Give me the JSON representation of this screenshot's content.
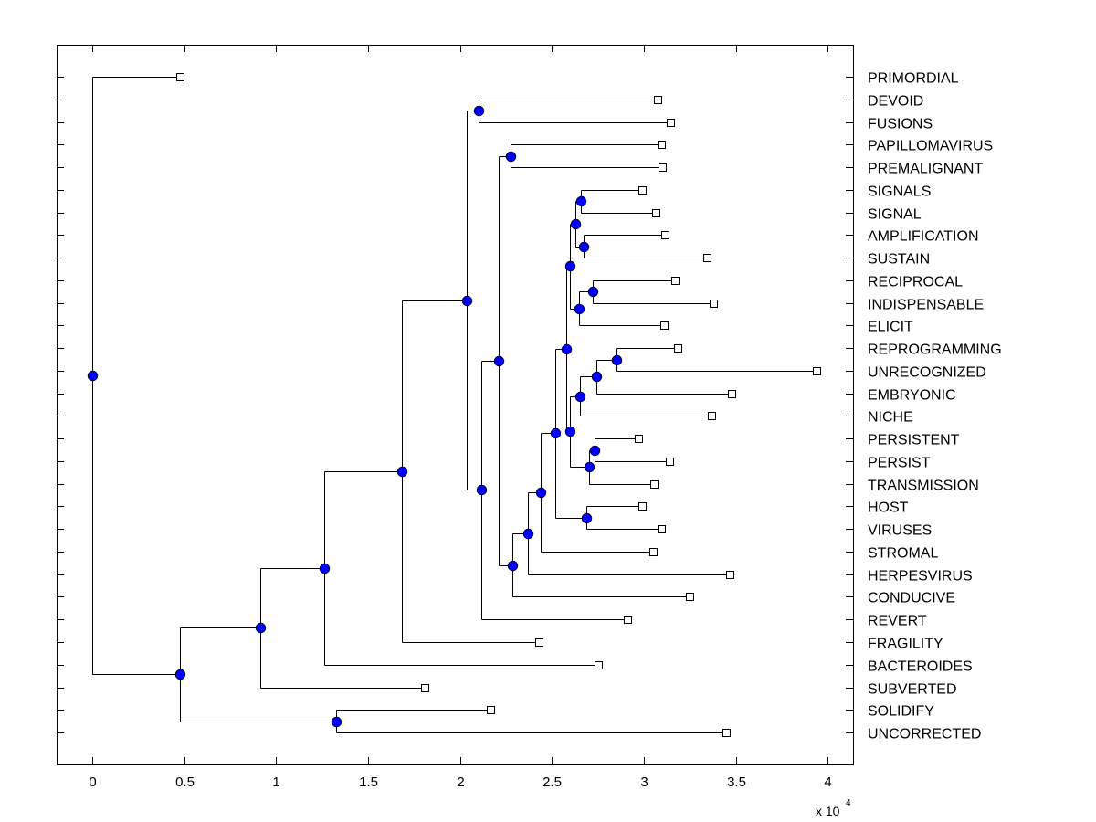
{
  "chart_data": {
    "type": "dendrogram",
    "title": "",
    "xlabel": "",
    "ylabel": "",
    "x_scale_multiplier": "x 10",
    "x_scale_exponent": "4",
    "xlim": [
      -0.19,
      4.14
    ],
    "xticks": [
      0,
      0.5,
      1,
      1.5,
      2,
      2.5,
      3,
      3.5,
      4
    ],
    "xtick_labels": [
      "0",
      "0.5",
      "1",
      "1.5",
      "2",
      "2.5",
      "3",
      "3.5",
      "4"
    ],
    "grid": false,
    "colors": {
      "node_fill": "#0000ff",
      "leaf_fill": "#ffffff",
      "line": "#000000"
    },
    "leaves": [
      {
        "id": "PRIMORDIAL",
        "x": 0.477
      },
      {
        "id": "DEVOID",
        "x": 3.075
      },
      {
        "id": "FUSIONS",
        "x": 3.145
      },
      {
        "id": "PAPILLOMAVIRUS",
        "x": 3.095
      },
      {
        "id": "PREMALIGNANT",
        "x": 3.1
      },
      {
        "id": "SIGNALS",
        "x": 2.99
      },
      {
        "id": "SIGNAL",
        "x": 3.065
      },
      {
        "id": "AMPLIFICATION",
        "x": 3.115
      },
      {
        "id": "SUSTAIN",
        "x": 3.345
      },
      {
        "id": "RECIPROCAL",
        "x": 3.17
      },
      {
        "id": "INDISPENSABLE",
        "x": 3.38
      },
      {
        "id": "ELICIT",
        "x": 3.11
      },
      {
        "id": "REPROGRAMMING",
        "x": 3.185
      },
      {
        "id": "UNRECOGNIZED",
        "x": 3.94
      },
      {
        "id": "EMBRYONIC",
        "x": 3.475
      },
      {
        "id": "NICHE",
        "x": 3.37
      },
      {
        "id": "PERSISTENT",
        "x": 2.97
      },
      {
        "id": "PERSIST",
        "x": 3.14
      },
      {
        "id": "TRANSMISSION",
        "x": 3.055
      },
      {
        "id": "HOST",
        "x": 2.99
      },
      {
        "id": "VIRUSES",
        "x": 3.095
      },
      {
        "id": "STROMAL",
        "x": 3.05
      },
      {
        "id": "HERPESVIRUS",
        "x": 3.465
      },
      {
        "id": "CONDUCIVE",
        "x": 3.25
      },
      {
        "id": "REVERT",
        "x": 2.91
      },
      {
        "id": "FRAGILITY",
        "x": 2.43
      },
      {
        "id": "BACTEROIDES",
        "x": 2.75
      },
      {
        "id": "SUBVERTED",
        "x": 1.81
      },
      {
        "id": "SOLIDIFY",
        "x": 2.165
      },
      {
        "id": "UNCORRECTED",
        "x": 3.45
      }
    ],
    "nodes": [
      {
        "id": "n_devoid_fusions",
        "x": 2.1,
        "children": [
          "DEVOID",
          "FUSIONS"
        ]
      },
      {
        "id": "n_papilloma_premal",
        "x": 2.275,
        "children": [
          "PAPILLOMAVIRUS",
          "PREMALIGNANT"
        ]
      },
      {
        "id": "n_signals_signal",
        "x": 2.66,
        "children": [
          "SIGNALS",
          "SIGNAL"
        ]
      },
      {
        "id": "n_amplif_sustain",
        "x": 2.675,
        "children": [
          "AMPLIFICATION",
          "SUSTAIN"
        ]
      },
      {
        "id": "n_sig_amp",
        "x": 2.63,
        "children": [
          "n_signals_signal",
          "n_amplif_sustain"
        ]
      },
      {
        "id": "n_recip_indisp",
        "x": 2.72,
        "children": [
          "RECIPROCAL",
          "INDISPENSABLE"
        ]
      },
      {
        "id": "n_recip_elicit",
        "x": 2.65,
        "children": [
          "n_recip_indisp",
          "ELICIT"
        ]
      },
      {
        "id": "n_upper_cluster",
        "x": 2.6,
        "children": [
          "n_sig_amp",
          "n_recip_elicit"
        ]
      },
      {
        "id": "n_reprog_unrecog",
        "x": 2.85,
        "children": [
          "REPROGRAMMING",
          "UNRECOGNIZED"
        ]
      },
      {
        "id": "n_reprog_embry",
        "x": 2.74,
        "children": [
          "n_reprog_unrecog",
          "EMBRYONIC"
        ]
      },
      {
        "id": "n_reprog_niche",
        "x": 2.655,
        "children": [
          "n_reprog_embry",
          "NICHE"
        ]
      },
      {
        "id": "n_persistent_persist",
        "x": 2.73,
        "children": [
          "PERSISTENT",
          "PERSIST"
        ]
      },
      {
        "id": "n_persist_transm",
        "x": 2.7,
        "children": [
          "n_persistent_persist",
          "TRANSMISSION"
        ]
      },
      {
        "id": "n_niche_persist",
        "x": 2.6,
        "children": [
          "n_reprog_niche",
          "n_persist_transm"
        ]
      },
      {
        "id": "n_core",
        "x": 2.58,
        "children": [
          "n_upper_cluster",
          "n_niche_persist"
        ]
      },
      {
        "id": "n_host_viruses",
        "x": 2.69,
        "children": [
          "HOST",
          "VIRUSES"
        ]
      },
      {
        "id": "n_core_host",
        "x": 2.52,
        "children": [
          "n_core",
          "n_host_viruses"
        ]
      },
      {
        "id": "n_stromal",
        "x": 2.44,
        "children": [
          "n_core_host",
          "STROMAL"
        ]
      },
      {
        "id": "n_herpes",
        "x": 2.37,
        "children": [
          "n_stromal",
          "HERPESVIRUS"
        ]
      },
      {
        "id": "n_conducive",
        "x": 2.285,
        "children": [
          "n_herpes",
          "CONDUCIVE"
        ]
      },
      {
        "id": "n_papilloma_group",
        "x": 2.21,
        "children": [
          "n_papilloma_premal",
          "n_conducive"
        ]
      },
      {
        "id": "n_revert",
        "x": 2.115,
        "children": [
          "n_papilloma_group",
          "REVERT"
        ]
      },
      {
        "id": "n_devoid_group",
        "x": 2.035,
        "children": [
          "n_devoid_fusions",
          "n_revert"
        ]
      },
      {
        "id": "n_fragility",
        "x": 1.685,
        "children": [
          "n_devoid_group",
          "FRAGILITY"
        ]
      },
      {
        "id": "n_bacteroides",
        "x": 1.26,
        "children": [
          "n_fragility",
          "BACTEROIDES"
        ]
      },
      {
        "id": "n_subverted",
        "x": 0.915,
        "children": [
          "n_bacteroides",
          "SUBVERTED"
        ]
      },
      {
        "id": "n_solidify_uncorr",
        "x": 1.325,
        "children": [
          "SOLIDIFY",
          "UNCORRECTED"
        ]
      },
      {
        "id": "n_lower",
        "x": 0.477,
        "children": [
          "n_subverted",
          "n_solidify_uncorr"
        ]
      },
      {
        "id": "n_root",
        "x": 0.0,
        "children": [
          "PRIMORDIAL",
          "n_lower"
        ]
      }
    ]
  }
}
